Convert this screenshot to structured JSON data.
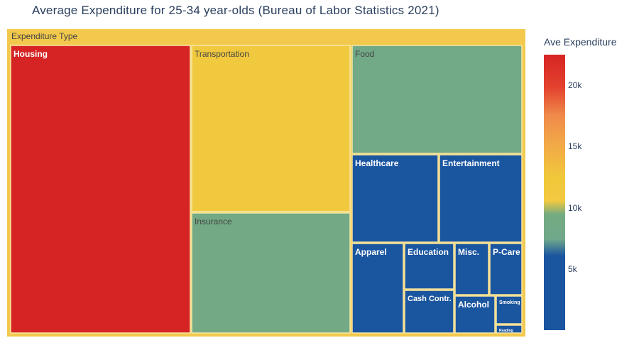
{
  "title": "Average Expenditure for 25-34 year-olds (Bureau of Labor Statistics 2021)",
  "colors": {
    "text_dark": "#444444",
    "text_light": "#ffffff",
    "root_fill": "#f2c94c",
    "border": "#f7e7a6"
  },
  "chart_data": {
    "type": "treemap",
    "root_label": "Expenditure Type",
    "colorbar": {
      "title": "Ave Expenditure",
      "ticks": [
        {
          "value": 5000,
          "label": "5k"
        },
        {
          "value": 10000,
          "label": "10k"
        },
        {
          "value": 15000,
          "label": "15k"
        },
        {
          "value": 20000,
          "label": "20k"
        }
      ],
      "range": [
        0,
        22500
      ],
      "colorscale": [
        [
          0.0,
          "#1a55a0"
        ],
        [
          0.27,
          "#1a55a0"
        ],
        [
          0.33,
          "#70a88a"
        ],
        [
          0.42,
          "#74ab82"
        ],
        [
          0.47,
          "#f2c940"
        ],
        [
          0.55,
          "#f0c93a"
        ],
        [
          0.68,
          "#f2a748"
        ],
        [
          0.78,
          "#ef8a4a"
        ],
        [
          0.88,
          "#e4432f"
        ],
        [
          1.0,
          "#d62424"
        ]
      ]
    },
    "items": [
      {
        "label": "Housing",
        "value": 22500
      },
      {
        "label": "Transportation",
        "value": 11300
      },
      {
        "label": "Insurance",
        "value": 8700
      },
      {
        "label": "Food",
        "value": 8200
      },
      {
        "label": "Healthcare",
        "value": 3100
      },
      {
        "label": "Entertainment",
        "value": 3000
      },
      {
        "label": "Apparel",
        "value": 1600
      },
      {
        "label": "Education",
        "value": 1050
      },
      {
        "label": "Cash Contr.",
        "value": 950
      },
      {
        "label": "Misc.",
        "value": 760
      },
      {
        "label": "Alcohol",
        "value": 620
      },
      {
        "label": "P-Care",
        "value": 730
      },
      {
        "label": "Smoking",
        "value": 300
      },
      {
        "label": "Reading",
        "value": 80
      }
    ]
  }
}
